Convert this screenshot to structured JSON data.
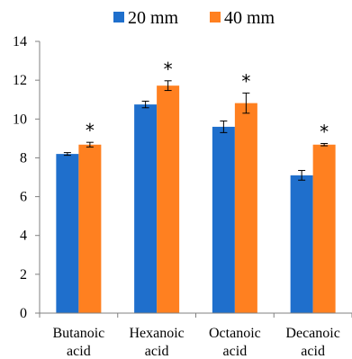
{
  "chart_data": {
    "type": "bar",
    "categories": [
      [
        "Butanoic",
        "acid"
      ],
      [
        "Hexanoic",
        "acid"
      ],
      [
        "Octanoic",
        "acid"
      ],
      [
        "Decanoic",
        "acid"
      ]
    ],
    "series": [
      {
        "name": "20 mm",
        "color": "#1F6FCC",
        "values": [
          8.2,
          10.75,
          9.6,
          7.1
        ],
        "errors": [
          0.07,
          0.17,
          0.3,
          0.25
        ]
      },
      {
        "name": "40 mm",
        "color": "#FF8020",
        "values": [
          8.68,
          11.72,
          10.82,
          8.68
        ],
        "errors": [
          0.12,
          0.25,
          0.52,
          0.06
        ]
      }
    ],
    "ylim": [
      0,
      14
    ],
    "yticks": [
      "0",
      "2",
      "4",
      "6",
      "8",
      "10",
      "12",
      "14"
    ],
    "grid": false,
    "legend_position": "top",
    "annotations": [
      {
        "category": 0,
        "series": 1,
        "text": "*"
      },
      {
        "category": 1,
        "series": 1,
        "text": "*"
      },
      {
        "category": 2,
        "series": 1,
        "text": "*"
      },
      {
        "category": 3,
        "series": 1,
        "text": "*"
      }
    ],
    "axis_color": "#808080"
  }
}
